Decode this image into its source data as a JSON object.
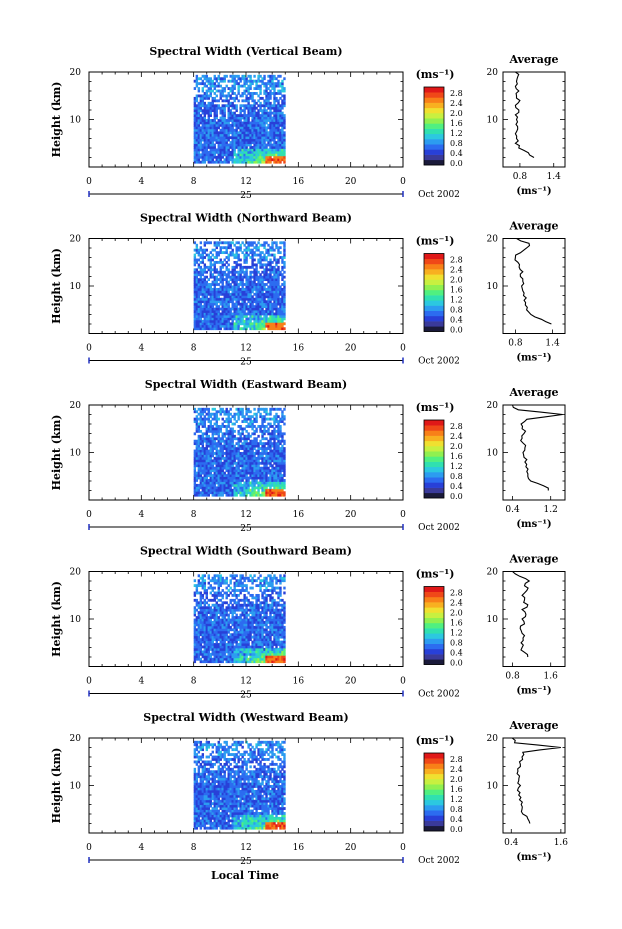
{
  "figure": {
    "xlabel": "Local Time",
    "ylabel": "Height (km)",
    "unit": "(ms⁻¹)",
    "date_label": "Oct 2002",
    "day_label": "25",
    "avg_title": "Average",
    "avg_xunit": "(ms⁻¹)"
  },
  "colorbar": {
    "tick_labels": [
      "2.8",
      "2.4",
      "2.0",
      "1.6",
      "1.2",
      "0.8",
      "0.4",
      "0.0"
    ],
    "colors": [
      "#1a1a3a",
      "#3a3a9a",
      "#2840d8",
      "#2c6cf0",
      "#2c9cf0",
      "#2cc8e0",
      "#30e0b0",
      "#50f080",
      "#90f050",
      "#c8f040",
      "#f0e030",
      "#f8b020",
      "#f88018",
      "#f04818",
      "#e01818"
    ]
  },
  "chart_data": [
    {
      "type": "heatmap",
      "title": "Spectral Width (Vertical Beam)",
      "x_ticks": [
        "0",
        "4",
        "8",
        "12",
        "16",
        "20",
        "0"
      ],
      "xlim": [
        0,
        24
      ],
      "y_ticks": [
        "20",
        "10"
      ],
      "ylim": [
        0,
        20
      ],
      "data_time_range": [
        8,
        15
      ],
      "avg": {
        "type": "line",
        "x_ticks": [
          "0.8",
          "1.4"
        ],
        "xlim": [
          0.5,
          1.6
        ],
        "heights": [
          2,
          3,
          4,
          5,
          6,
          7,
          8,
          9,
          10,
          11,
          12,
          13,
          14,
          15,
          16,
          17,
          18,
          19,
          20
        ],
        "values": [
          1.05,
          0.95,
          0.78,
          0.72,
          0.74,
          0.72,
          0.76,
          0.73,
          0.74,
          0.72,
          0.78,
          0.72,
          0.8,
          0.74,
          0.78,
          0.72,
          0.74,
          0.76,
          0.72
        ]
      }
    },
    {
      "type": "heatmap",
      "title": "Spectral Width (Northward Beam)",
      "x_ticks": [
        "0",
        "4",
        "8",
        "12",
        "16",
        "20",
        "0"
      ],
      "xlim": [
        0,
        24
      ],
      "y_ticks": [
        "20",
        "10"
      ],
      "ylim": [
        0,
        20
      ],
      "data_time_range": [
        8,
        15
      ],
      "avg": {
        "type": "line",
        "x_ticks": [
          "0.8",
          "1.4"
        ],
        "xlim": [
          0.6,
          1.6
        ],
        "heights": [
          2,
          3,
          4,
          5,
          6,
          7,
          8,
          9,
          10,
          11,
          12,
          13,
          14,
          15,
          16,
          17,
          18,
          19,
          20
        ],
        "values": [
          1.38,
          1.22,
          1.05,
          0.98,
          0.96,
          0.94,
          0.93,
          0.92,
          0.9,
          0.92,
          0.88,
          0.92,
          0.86,
          0.84,
          0.8,
          0.88,
          0.98,
          1.02,
          0.82
        ]
      }
    },
    {
      "type": "heatmap",
      "title": "Spectral Width (Eastward Beam)",
      "x_ticks": [
        "0",
        "4",
        "8",
        "12",
        "16",
        "20",
        "0"
      ],
      "xlim": [
        0,
        24
      ],
      "y_ticks": [
        "20",
        "10"
      ],
      "ylim": [
        0,
        20
      ],
      "data_time_range": [
        8,
        15
      ],
      "avg": {
        "type": "line",
        "x_ticks": [
          "0.4",
          "1.2"
        ],
        "xlim": [
          0.2,
          1.5
        ],
        "heights": [
          2,
          3,
          4,
          5,
          6,
          7,
          8,
          9,
          10,
          11,
          12,
          13,
          14,
          15,
          16,
          17,
          18,
          19,
          20
        ],
        "values": [
          1.15,
          1.05,
          0.78,
          0.72,
          0.7,
          0.68,
          0.66,
          0.64,
          0.62,
          0.66,
          0.62,
          0.6,
          0.64,
          0.6,
          0.58,
          0.7,
          1.45,
          0.52,
          0.4
        ]
      }
    },
    {
      "type": "heatmap",
      "title": "Spectral Width (Southward Beam)",
      "x_ticks": [
        "0",
        "4",
        "8",
        "12",
        "16",
        "20",
        "0"
      ],
      "xlim": [
        0,
        24
      ],
      "y_ticks": [
        "20",
        "10"
      ],
      "ylim": [
        0,
        20
      ],
      "data_time_range": [
        8,
        15
      ],
      "avg": {
        "type": "line",
        "x_ticks": [
          "0.8",
          "1.6"
        ],
        "xlim": [
          0.6,
          1.9
        ],
        "heights": [
          2,
          3,
          4,
          5,
          6,
          7,
          8,
          9,
          10,
          11,
          12,
          13,
          14,
          15,
          16,
          17,
          18,
          19,
          20
        ],
        "values": [
          1.12,
          1.05,
          1.0,
          0.98,
          1.02,
          1.0,
          0.96,
          1.05,
          1.0,
          1.08,
          1.0,
          1.12,
          1.05,
          1.0,
          1.1,
          1.05,
          1.15,
          0.95,
          0.8
        ]
      }
    },
    {
      "type": "heatmap",
      "title": "Spectral Width (Westward Beam)",
      "x_ticks": [
        "0",
        "4",
        "8",
        "12",
        "16",
        "20",
        "0"
      ],
      "xlim": [
        0,
        24
      ],
      "y_ticks": [
        "20",
        "10"
      ],
      "ylim": [
        0,
        20
      ],
      "data_time_range": [
        8,
        15
      ],
      "avg": {
        "type": "line",
        "x_ticks": [
          "0.4",
          "1.6"
        ],
        "xlim": [
          0.2,
          1.7
        ],
        "heights": [
          2,
          3,
          4,
          5,
          6,
          7,
          8,
          9,
          10,
          11,
          12,
          13,
          14,
          15,
          16,
          17,
          18,
          19,
          20
        ],
        "values": [
          0.85,
          0.8,
          0.68,
          0.66,
          0.64,
          0.6,
          0.58,
          0.55,
          0.62,
          0.58,
          0.6,
          0.56,
          0.62,
          0.6,
          0.66,
          0.68,
          1.6,
          0.48,
          0.42
        ]
      }
    }
  ]
}
